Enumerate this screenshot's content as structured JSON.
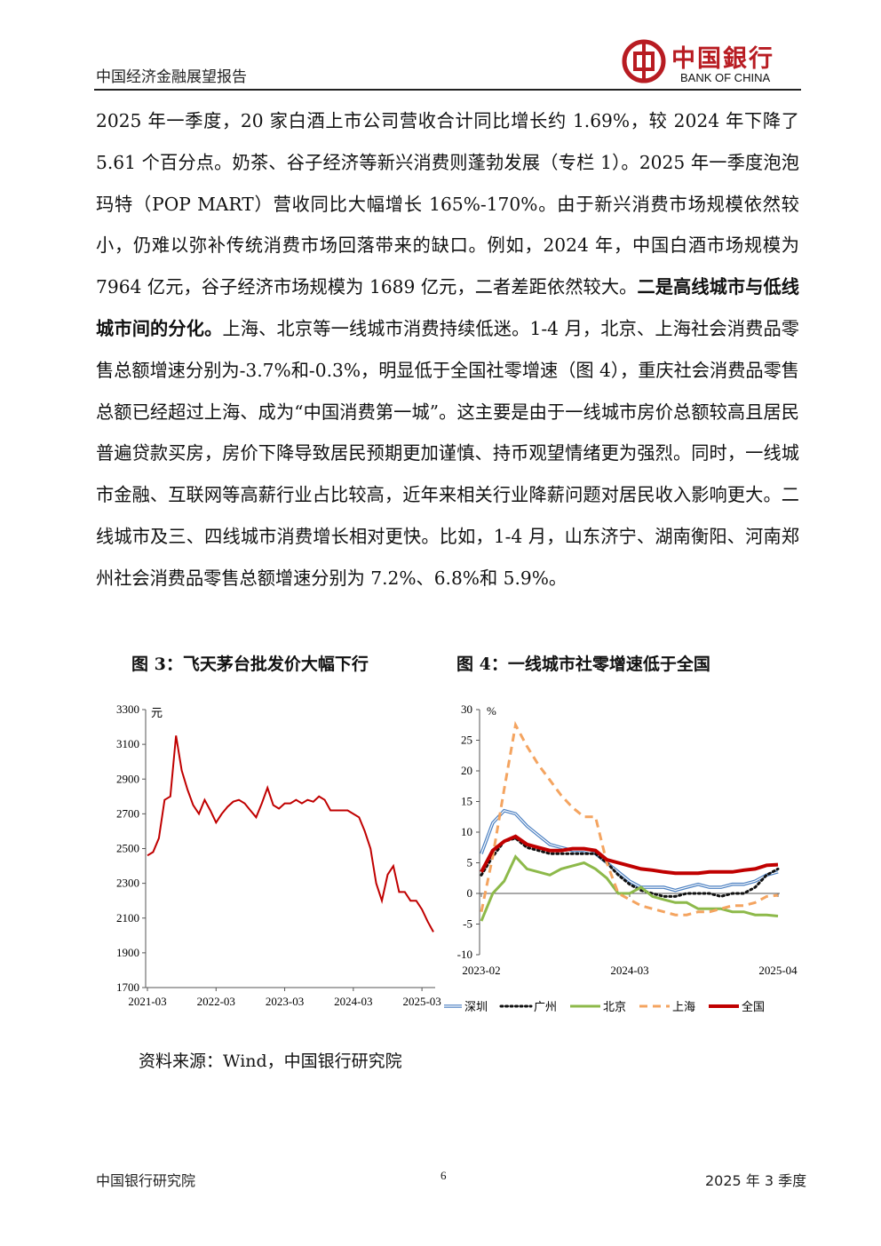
{
  "header": {
    "report_title": "中国经济金融展望报告",
    "logo_cn": "中国銀行",
    "logo_en": "BANK OF CHINA",
    "logo_color": "#b81c22"
  },
  "body": {
    "seg1": "2025 年一季度，20 家白酒上市公司营收合计同比增长约 1.69%，较 2024 年下降了 5.61 个百分点。奶茶、谷子经济等新兴消费则蓬勃发展（专栏 1）。2025 年一季度泡泡玛特（POP MART）营收同比大幅增长 165%-170%。由于新兴消费市场规模依然较小，仍难以弥补传统消费市场回落带来的缺口。例如，2024 年，中国白酒市场规模为 7964 亿元，谷子经济市场规模为 1689 亿元，二者差距依然较大。",
    "seg2_bold": "二是高线城市与低线城市间的分化。",
    "seg3": "上海、北京等一线城市消费持续低迷。1-4 月，北京、上海社会消费品零售总额增速分别为-3.7%和-0.3%，明显低于全国社零增速（图 4），重庆社会消费品零售总额已经超过上海、成为“中国消费第一城”。这主要是由于一线城市房价总额较高且居民普遍贷款买房，房价下降导致居民预期更加谨慎、持币观望情绪更为强烈。同时，一线城市金融、互联网等高薪行业占比较高，近年来相关行业降薪问题对居民收入影响更大。二线城市及三、四线城市消费增长相对更快。比如，1-4 月，山东济宁、湖南衡阳、河南郑州社会消费品零售总额增速分别为 7.2%、6.8%和 5.9%。"
  },
  "figures": {
    "fig3_title": "图 3：飞天茅台批发价大幅下行",
    "fig4_title": "图 4：一线城市社零增速低于全国",
    "source": "资料来源：Wind，中国银行研究院"
  },
  "chart_data": [
    {
      "type": "line",
      "unit_label": "元",
      "ylim": [
        1700,
        3300
      ],
      "yticks": [
        "1700",
        "1900",
        "2100",
        "2300",
        "2500",
        "2700",
        "2900",
        "3100",
        "3300"
      ],
      "xticks": [
        "2021-03",
        "2022-03",
        "2023-03",
        "2024-03",
        "2025-03"
      ],
      "x": [
        "2021-03",
        "2021-04",
        "2021-05",
        "2021-06",
        "2021-07",
        "2021-08",
        "2021-09",
        "2021-10",
        "2021-11",
        "2021-12",
        "2022-01",
        "2022-02",
        "2022-03",
        "2022-04",
        "2022-05",
        "2022-06",
        "2022-07",
        "2022-08",
        "2022-09",
        "2022-10",
        "2022-11",
        "2022-12",
        "2023-01",
        "2023-02",
        "2023-03",
        "2023-04",
        "2023-05",
        "2023-06",
        "2023-07",
        "2023-08",
        "2023-09",
        "2023-10",
        "2023-11",
        "2023-12",
        "2024-01",
        "2024-02",
        "2024-03",
        "2024-04",
        "2024-05",
        "2024-06",
        "2024-07",
        "2024-08",
        "2024-09",
        "2024-10",
        "2024-11",
        "2024-12",
        "2025-01",
        "2025-02",
        "2025-03",
        "2025-04",
        "2025-05"
      ],
      "values": [
        2460,
        2480,
        2560,
        2780,
        2800,
        3150,
        2950,
        2840,
        2750,
        2700,
        2780,
        2720,
        2650,
        2700,
        2740,
        2770,
        2780,
        2760,
        2720,
        2680,
        2760,
        2850,
        2750,
        2730,
        2760,
        2760,
        2780,
        2760,
        2780,
        2770,
        2800,
        2780,
        2720,
        2720,
        2720,
        2720,
        2700,
        2680,
        2600,
        2500,
        2300,
        2200,
        2350,
        2400,
        2250,
        2250,
        2200,
        2200,
        2150,
        2080,
        2020
      ],
      "color": "#c00000"
    },
    {
      "type": "line",
      "unit_label": "%",
      "ylim": [
        -10,
        30
      ],
      "yticks": [
        "-10",
        "-5",
        "0",
        "5",
        "10",
        "15",
        "20",
        "25",
        "30"
      ],
      "xticks": [
        "2023-02",
        "2024-03",
        "2025-04"
      ],
      "x": [
        "2023-02",
        "2023-03",
        "2023-04",
        "2023-05",
        "2023-06",
        "2023-07",
        "2023-08",
        "2023-09",
        "2023-10",
        "2023-11",
        "2023-12",
        "2024-01",
        "2024-02",
        "2024-03",
        "2024-04",
        "2024-05",
        "2024-06",
        "2024-07",
        "2024-08",
        "2024-09",
        "2024-10",
        "2024-11",
        "2024-12",
        "2025-01",
        "2025-02",
        "2025-03",
        "2025-04"
      ],
      "series": [
        {
          "name": "深圳",
          "color": "#4a7fc1",
          "dash": "double",
          "values": [
            6.5,
            11.5,
            13.5,
            13.0,
            11.0,
            9.5,
            8.0,
            7.5,
            7.0,
            7.0,
            6.5,
            5.0,
            3.5,
            2.0,
            1.0,
            1.0,
            1.0,
            0.5,
            1.0,
            1.5,
            1.0,
            1.0,
            1.5,
            1.5,
            2.0,
            3.0,
            3.5
          ]
        },
        {
          "name": "广州",
          "color": "#111111",
          "dash": "dotted",
          "values": [
            3.0,
            6.0,
            8.5,
            9.0,
            7.5,
            7.0,
            6.5,
            6.5,
            6.5,
            6.5,
            6.5,
            5.0,
            3.0,
            1.5,
            0.5,
            0.0,
            -0.5,
            -0.5,
            0.0,
            0.0,
            0.0,
            -0.5,
            0.0,
            0.0,
            1.0,
            3.0,
            4.0
          ]
        },
        {
          "name": "北京",
          "color": "#8db94a",
          "dash": "solid",
          "values": [
            -4.5,
            0.0,
            2.0,
            6.0,
            4.0,
            3.5,
            3.0,
            4.0,
            4.5,
            5.0,
            4.0,
            2.5,
            0.0,
            0.0,
            1.0,
            -0.5,
            -1.0,
            -1.5,
            -1.5,
            -2.5,
            -2.5,
            -2.5,
            -3.0,
            -3.0,
            -3.5,
            -3.5,
            -3.7
          ]
        },
        {
          "name": "上海",
          "color": "#f4a460",
          "dash": "dashed",
          "values": [
            -3.0,
            6.0,
            17.0,
            27.5,
            24.0,
            21.0,
            18.5,
            16.0,
            14.0,
            12.5,
            12.5,
            5.0,
            0.0,
            -1.0,
            -2.0,
            -2.5,
            -3.0,
            -3.5,
            -3.5,
            -3.0,
            -3.0,
            -2.5,
            -2.0,
            -2.0,
            -1.5,
            -0.5,
            -0.3
          ]
        },
        {
          "name": "全国",
          "color": "#c00000",
          "dash": "solid-thick",
          "values": [
            3.5,
            7.0,
            8.5,
            9.3,
            8.0,
            7.5,
            7.0,
            7.0,
            7.3,
            7.3,
            7.0,
            5.5,
            5.0,
            4.5,
            4.0,
            3.8,
            3.5,
            3.3,
            3.3,
            3.3,
            3.5,
            3.5,
            3.5,
            3.8,
            4.0,
            4.6,
            4.7
          ]
        }
      ]
    }
  ],
  "footer": {
    "left": "中国银行研究院",
    "page": "6",
    "right": "2025 年 3 季度"
  }
}
